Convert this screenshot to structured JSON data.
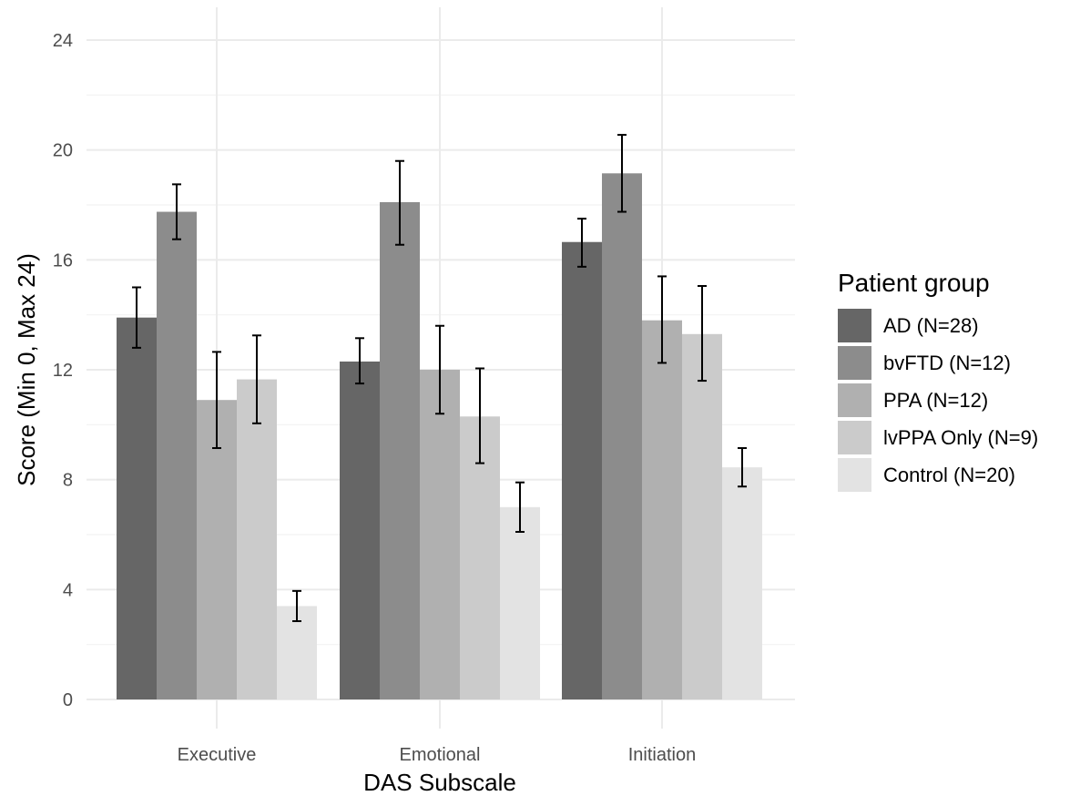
{
  "chart_data": {
    "type": "bar",
    "title": "",
    "xlabel": "DAS Subscale",
    "ylabel": "Score (Min 0, Max 24)",
    "categories": [
      "Executive",
      "Emotional",
      "Initiation"
    ],
    "ylim": [
      0,
      24
    ],
    "yticks": [
      0,
      4,
      8,
      12,
      16,
      20,
      24
    ],
    "grid": true,
    "legend_title": "Patient group",
    "legend_position": "right",
    "series": [
      {
        "name": "AD (N=28)",
        "color": "#666666",
        "values": [
          13.9,
          12.3,
          16.65
        ],
        "err_low": [
          12.8,
          11.5,
          15.75
        ],
        "err_high": [
          15.0,
          13.15,
          17.5
        ]
      },
      {
        "name": "bvFTD (N=12)",
        "color": "#8c8c8c",
        "values": [
          17.75,
          18.1,
          19.15
        ],
        "err_low": [
          16.75,
          16.55,
          17.75
        ],
        "err_high": [
          18.75,
          19.6,
          20.55
        ]
      },
      {
        "name": "PPA (N=12)",
        "color": "#b0b0b0",
        "values": [
          10.9,
          12.0,
          13.8
        ],
        "err_low": [
          9.15,
          10.4,
          12.25
        ],
        "err_high": [
          12.65,
          13.6,
          15.4
        ]
      },
      {
        "name": "lvPPA Only (N=9)",
        "color": "#cbcbcb",
        "values": [
          11.65,
          10.3,
          13.3
        ],
        "err_low": [
          10.05,
          8.6,
          11.6
        ],
        "err_high": [
          13.25,
          12.05,
          15.05
        ]
      },
      {
        "name": "Control (N=20)",
        "color": "#e3e3e3",
        "values": [
          3.4,
          7.0,
          8.45
        ],
        "err_low": [
          2.85,
          6.1,
          7.75
        ],
        "err_high": [
          3.95,
          7.9,
          9.15
        ]
      }
    ]
  }
}
